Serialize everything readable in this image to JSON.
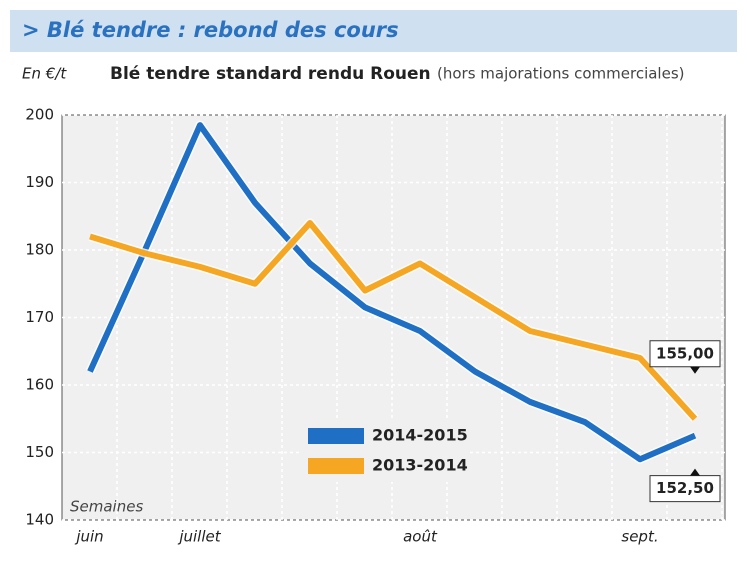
{
  "chart_data": {
    "type": "line",
    "header": "> Blé tendre : rebond des cours",
    "title": "Blé tendre standard rendu Rouen",
    "subtitle": "(hors majorations commerciales)",
    "y_label": "En €/t",
    "x_label": "Semaines",
    "categories": [
      "juin",
      null,
      "juillet",
      null,
      null,
      null,
      "août",
      null,
      null,
      null,
      "sept.",
      null
    ],
    "series": [
      {
        "name": "2014-2015",
        "color": "#1f6fc4",
        "values": [
          162,
          180,
          198.5,
          187,
          178,
          171.5,
          168,
          162,
          157.5,
          154.5,
          149,
          152.5
        ],
        "value_labels": [
          null,
          null,
          null,
          null,
          null,
          null,
          null,
          null,
          null,
          null,
          null,
          "152,50"
        ]
      },
      {
        "name": "2013-2014",
        "color": "#f5a623",
        "values": [
          182,
          179.5,
          177.5,
          175,
          184,
          174,
          178,
          173,
          168,
          166,
          164,
          155
        ],
        "value_labels": [
          null,
          null,
          null,
          null,
          null,
          null,
          null,
          null,
          null,
          null,
          null,
          "155,00"
        ]
      }
    ],
    "ylim": [
      140,
      200
    ],
    "yticks": [
      140,
      150,
      160,
      170,
      180,
      190,
      200
    ],
    "grid": true
  }
}
